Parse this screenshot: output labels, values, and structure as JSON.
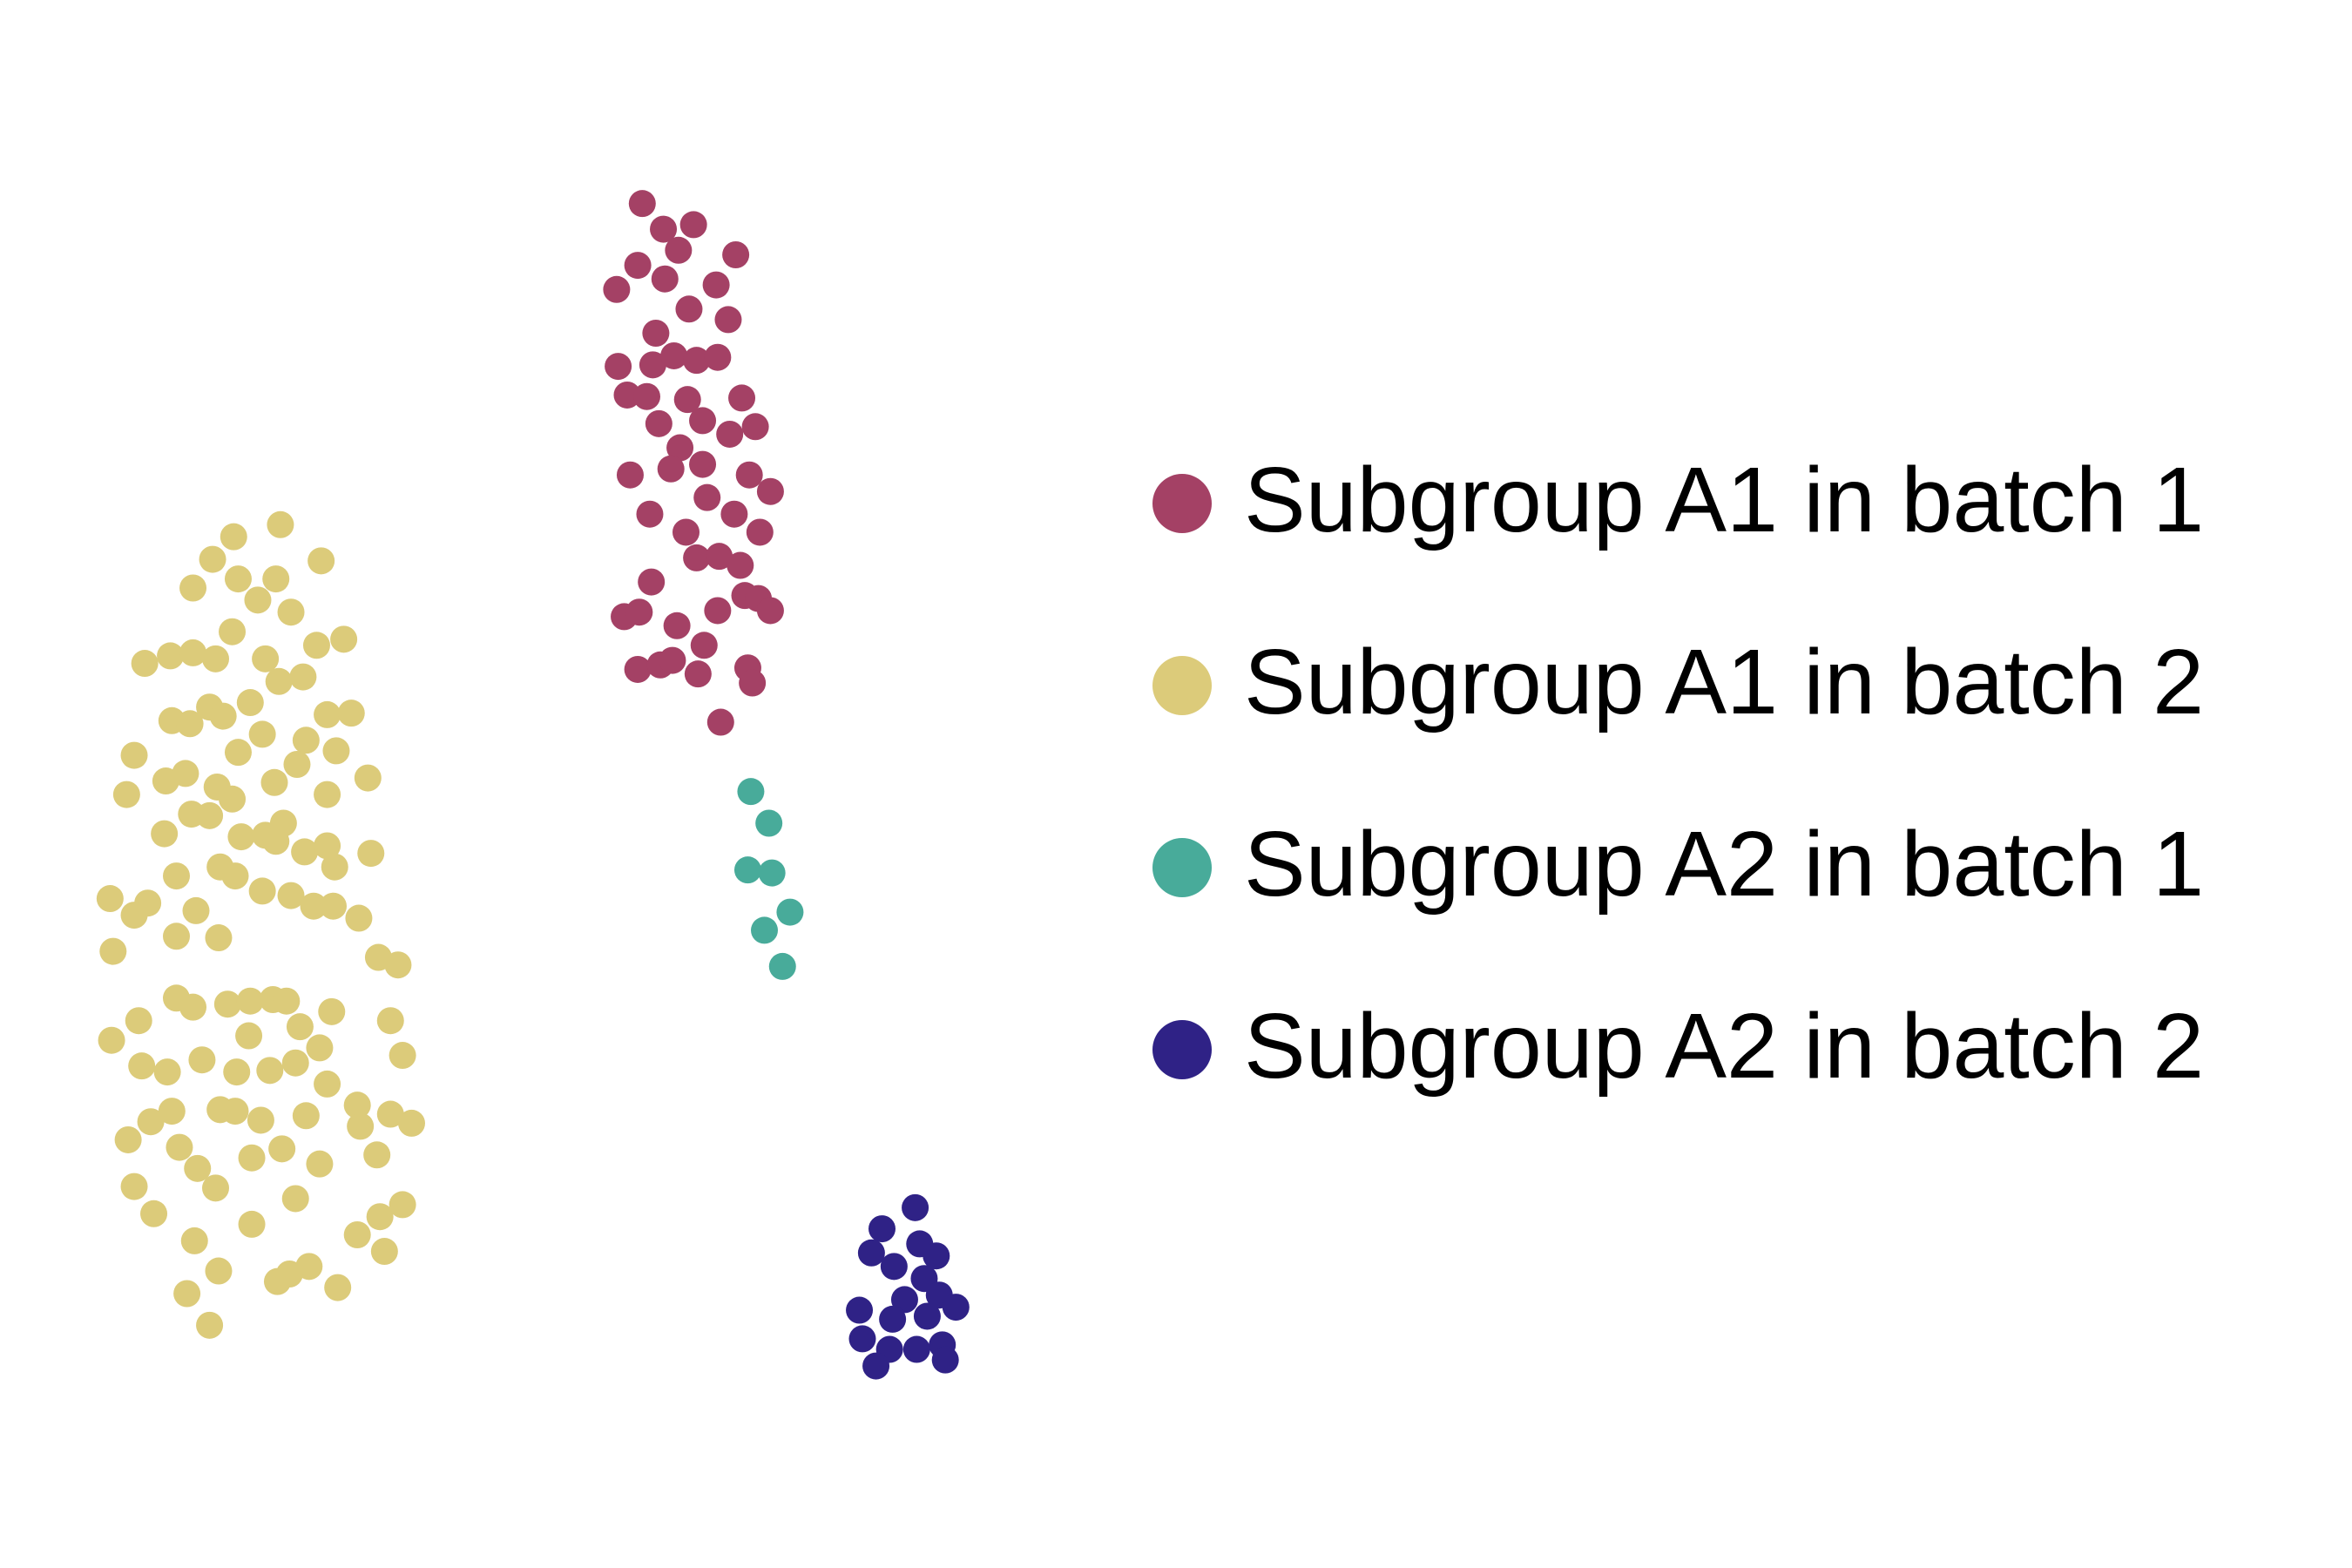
{
  "chart_data": {
    "type": "scatter",
    "xlim": [
      0,
      1560
    ],
    "ylim": [
      1040,
      0
    ],
    "series": [
      {
        "name": "Subgroup A1 in batch 1",
        "color": "#a44165",
        "x": [
          426,
          440,
          460,
          450,
          488,
          423,
          441,
          475,
          409,
          457,
          483,
          435,
          410,
          433,
          447,
          462,
          476,
          416,
          429,
          456,
          492,
          437,
          466,
          484,
          501,
          451,
          445,
          466,
          418,
          497,
          511,
          469,
          431,
          487,
          504,
          455,
          462,
          477,
          491,
          432,
          494,
          503,
          414,
          424,
          476,
          511,
          449,
          467,
          423,
          438,
          446,
          463,
          496,
          499,
          478
        ],
        "y": [
          135,
          152,
          149,
          166,
          169,
          176,
          185,
          189,
          192,
          205,
          212,
          221,
          243,
          242,
          236,
          239,
          237,
          262,
          263,
          265,
          264,
          281,
          279,
          288,
          283,
          297,
          311,
          308,
          315,
          315,
          326,
          330,
          341,
          341,
          353,
          353,
          370,
          369,
          375,
          386,
          395,
          397,
          409,
          406,
          405,
          405,
          415,
          428,
          444,
          441,
          438,
          447,
          443,
          453,
          479
        ]
      },
      {
        "name": "Subgroup A1 in batch 2",
        "color": "#dccb7a",
        "x": [
          155,
          186,
          128,
          158,
          183,
          213,
          141,
          171,
          193,
          154,
          96,
          113,
          128,
          143,
          176,
          210,
          228,
          185,
          201,
          166,
          139,
          114,
          126,
          148,
          217,
          233,
          174,
          203,
          223,
          158,
          89,
          197,
          110,
          123,
          144,
          182,
          244,
          84,
          217,
          154,
          127,
          139,
          188,
          109,
          160,
          176,
          183,
          202,
          217,
          246,
          146,
          222,
          117,
          156,
          174,
          193,
          73,
          98,
          89,
          130,
          208,
          221,
          238,
          117,
          145,
          75,
          251,
          264,
          117,
          128,
          151,
          166,
          181,
          190,
          220,
          92,
          259,
          199,
          74,
          165,
          212,
          134,
          94,
          111,
          157,
          179,
          196,
          267,
          217,
          146,
          156,
          173,
          203,
          237,
          100,
          114,
          239,
          259,
          273,
          85,
          119,
          187,
          167,
          212,
          250,
          131,
          143,
          89,
          196,
          252,
          267,
          102,
          167,
          237,
          129,
          255,
          145,
          205,
          184,
          192,
          224,
          124,
          139
        ],
        "y": [
          356,
          348,
          390,
          384,
          384,
          372,
          371,
          398,
          406,
          419,
          440,
          435,
          433,
          437,
          437,
          428,
          424,
          452,
          449,
          466,
          469,
          478,
          480,
          475,
          474,
          473,
          487,
          491,
          498,
          499,
          501,
          507,
          518,
          513,
          522,
          519,
          516,
          527,
          527,
          530,
          540,
          541,
          546,
          553,
          555,
          554,
          558,
          565,
          561,
          566,
          575,
          575,
          581,
          581,
          591,
          594,
          596,
          599,
          607,
          604,
          601,
          601,
          609,
          621,
          622,
          631,
          635,
          640,
          662,
          668,
          666,
          664,
          663,
          664,
          671,
          677,
          677,
          681,
          690,
          687,
          695,
          703,
          707,
          711,
          711,
          710,
          705,
          700,
          719,
          736,
          737,
          743,
          740,
          733,
          744,
          737,
          747,
          739,
          745,
          756,
          761,
          762,
          768,
          772,
          766,
          775,
          788,
          787,
          795,
          807,
          799,
          805,
          812,
          819,
          823,
          830,
          843,
          840,
          850,
          845,
          854,
          858,
          879
        ]
      },
      {
        "name": "Subgroup A2 in batch 1",
        "color": "#48ab9a",
        "x": [
          498,
          510,
          496,
          512,
          524,
          507,
          519
        ],
        "y": [
          525,
          546,
          577,
          579,
          605,
          617,
          641
        ]
      },
      {
        "name": "Subgroup A2 in batch 2",
        "color": "#2f2286",
        "x": [
          607,
          585,
          578,
          610,
          593,
          621,
          613,
          600,
          623,
          634,
          570,
          592,
          615,
          572,
          590,
          608,
          625,
          581,
          627
        ],
        "y": [
          801,
          815,
          831,
          825,
          840,
          833,
          848,
          862,
          859,
          867,
          869,
          875,
          873,
          888,
          895,
          895,
          892,
          906,
          902
        ]
      }
    ]
  }
}
